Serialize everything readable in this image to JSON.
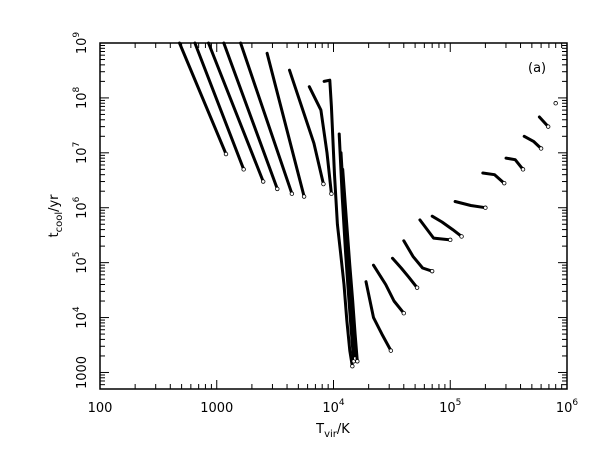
{
  "chart_data": {
    "type": "line",
    "panel_label": "(a)",
    "xlabel": {
      "main": "T",
      "sub": "vir",
      "tail": "/K"
    },
    "ylabel": {
      "main": "t",
      "sub": "cool",
      "tail": "/yr"
    },
    "x_scale": "log",
    "y_scale": "log",
    "xlim": [
      100,
      1000000
    ],
    "ylim": [
      500,
      1000000000
    ],
    "x_ticks": [
      {
        "value": 100,
        "label": "100"
      },
      {
        "value": 1000,
        "label": "1000"
      },
      {
        "value": 10000,
        "base": "10",
        "exp": "4"
      },
      {
        "value": 100000,
        "base": "10",
        "exp": "5"
      },
      {
        "value": 1000000,
        "base": "10",
        "exp": "6"
      }
    ],
    "y_ticks": [
      {
        "value": 1000,
        "label": "1000"
      },
      {
        "value": 10000,
        "base": "10",
        "exp": "4"
      },
      {
        "value": 100000,
        "base": "10",
        "exp": "5"
      },
      {
        "value": 1000000,
        "base": "10",
        "exp": "6"
      },
      {
        "value": 10000000,
        "base": "10",
        "exp": "7"
      },
      {
        "value": 100000000,
        "base": "10",
        "exp": "8"
      },
      {
        "value": 1000000000,
        "base": "10",
        "exp": "9"
      }
    ],
    "grid": false,
    "series": [
      {
        "x": [
          480,
          1200
        ],
        "y": [
          1000000000,
          9500000
        ],
        "marker_at_end": true
      },
      {
        "x": [
          650,
          1700
        ],
        "y": [
          1000000000,
          5000000
        ],
        "marker_at_end": true
      },
      {
        "x": [
          850,
          2500
        ],
        "y": [
          1000000000,
          3000000
        ],
        "marker_at_end": true
      },
      {
        "x": [
          1150,
          3300
        ],
        "y": [
          1000000000,
          2200000
        ],
        "marker_at_end": true
      },
      {
        "x": [
          1600,
          4400
        ],
        "y": [
          1000000000,
          1800000
        ],
        "marker_at_end": true
      },
      {
        "x": [
          2700,
          5600
        ],
        "y": [
          650000000,
          1600000
        ],
        "marker_at_end": true
      },
      {
        "x": [
          4200,
          6800,
          8200
        ],
        "y": [
          320000000,
          15000000,
          2700000
        ],
        "marker_at_end": true
      },
      {
        "x": [
          6200,
          7800,
          8800,
          9600
        ],
        "y": [
          160000000,
          60000000,
          10000000,
          1800000
        ],
        "marker_at_end": true
      },
      {
        "x": [
          8300,
          9300,
          9600,
          10200,
          10800,
          11500,
          12300,
          13000,
          13800,
          14500
        ],
        "y": [
          200000000,
          210000000,
          70000000,
          4000000,
          500000,
          150000,
          40000,
          9000,
          2500,
          1300
        ],
        "marker_at_end": true
      },
      {
        "x": [
          11200,
          11900,
          12700,
          13400,
          14100,
          14900
        ],
        "y": [
          22000000,
          1500000,
          150000,
          30000,
          7000,
          1600
        ],
        "marker_at_end": true
      },
      {
        "x": [
          11600,
          12400,
          13300,
          14000,
          14700,
          15400
        ],
        "y": [
          10000000,
          900000,
          120000,
          25000,
          6000,
          1800
        ],
        "marker_at_end": true
      },
      {
        "x": [
          12000,
          12900,
          13800,
          14600,
          15300,
          16000
        ],
        "y": [
          5000000,
          600000,
          90000,
          20000,
          5000,
          1600
        ],
        "marker_at_end": true
      },
      {
        "x": [
          19000,
          22000,
          26000,
          31000
        ],
        "y": [
          45000,
          10000,
          5000,
          2500
        ],
        "marker_at_end": true
      },
      {
        "x": [
          22000,
          28000,
          33000,
          40000
        ],
        "y": [
          90000,
          40000,
          20000,
          12000
        ],
        "marker_at_end": true
      },
      {
        "x": [
          32000,
          38000,
          44000,
          52000
        ],
        "y": [
          120000,
          80000,
          55000,
          35000
        ],
        "marker_at_end": true
      },
      {
        "x": [
          40000,
          48000,
          58000,
          70000
        ],
        "y": [
          250000,
          130000,
          80000,
          70000
        ],
        "marker_at_end": true
      },
      {
        "x": [
          55000,
          72000,
          100000
        ],
        "y": [
          600000,
          280000,
          260000
        ],
        "marker_at_end": true
      },
      {
        "x": [
          70000,
          85000,
          105000,
          125000
        ],
        "y": [
          700000,
          550000,
          400000,
          300000
        ],
        "marker_at_end": true
      },
      {
        "x": [
          110000,
          150000,
          200000
        ],
        "y": [
          1300000,
          1100000,
          1000000
        ],
        "marker_at_end": true
      },
      {
        "x": [
          190000,
          240000,
          290000
        ],
        "y": [
          4300000,
          4000000,
          2800000
        ],
        "marker_at_end": true
      },
      {
        "x": [
          300000,
          360000,
          420000
        ],
        "y": [
          8000000,
          7500000,
          5000000
        ],
        "marker_at_end": true
      },
      {
        "x": [
          430000,
          520000,
          600000
        ],
        "y": [
          20000000,
          16000000,
          12000000
        ],
        "marker_at_end": true
      },
      {
        "x": [
          580000,
          690000
        ],
        "y": [
          45000000,
          30000000
        ],
        "marker_at_end": true
      },
      {
        "x": [
          800000
        ],
        "y": [
          80000000
        ],
        "marker_at_end": true
      }
    ]
  }
}
